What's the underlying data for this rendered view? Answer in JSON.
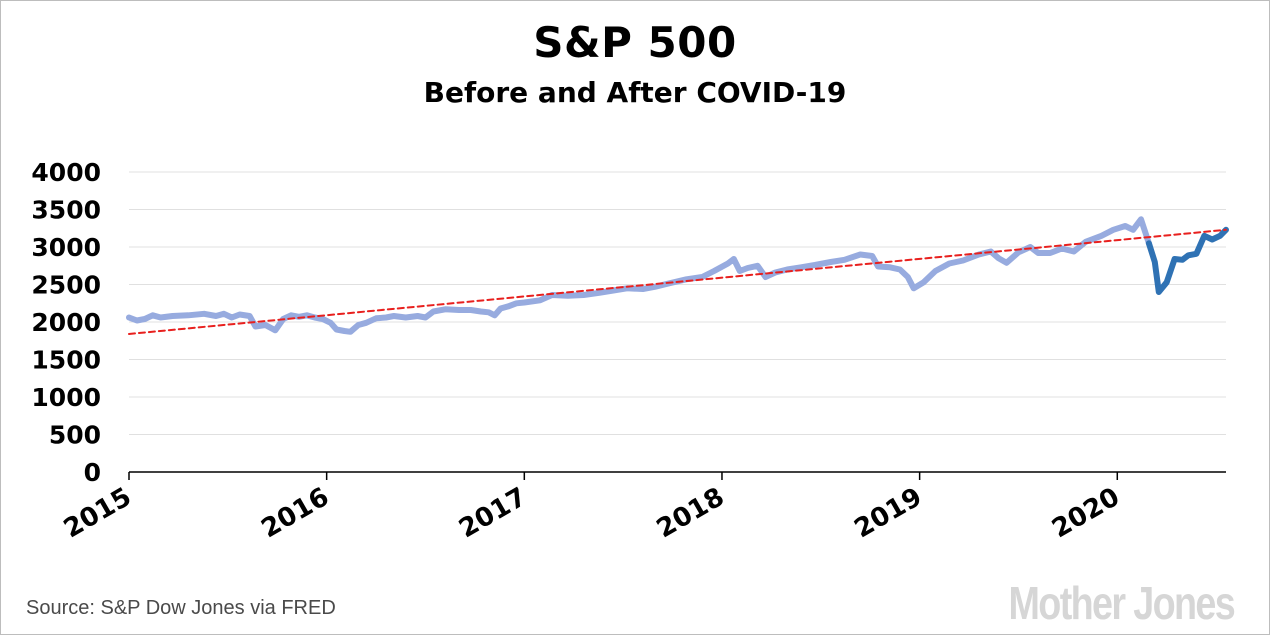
{
  "page": {
    "title": "S&P 500",
    "subtitle": "Before and After COVID-19",
    "source": "Source: S&P Dow Jones via FRED",
    "logo": "Mother Jones"
  },
  "colors": {
    "pre_covid": "#97abdf",
    "post_covid": "#2f72b4",
    "trend": "#e8201e",
    "grid": "#e0e0e0"
  },
  "chart_data": {
    "type": "line",
    "ylim": [
      0,
      4000
    ],
    "xlim": [
      2015,
      2020.55
    ],
    "yticks": [
      0,
      500,
      1000,
      1500,
      2000,
      2500,
      3000,
      3500,
      4000
    ],
    "xticks": [
      2015,
      2016,
      2017,
      2018,
      2019,
      2020
    ],
    "grid": true,
    "series": [
      {
        "style": "solid",
        "points": [
          [
            2015.0,
            2060
          ],
          [
            2015.04,
            2020
          ],
          [
            2015.08,
            2040
          ],
          [
            2015.12,
            2090
          ],
          [
            2015.16,
            2060
          ],
          [
            2015.22,
            2080
          ],
          [
            2015.3,
            2090
          ],
          [
            2015.38,
            2110
          ],
          [
            2015.44,
            2080
          ],
          [
            2015.48,
            2110
          ],
          [
            2015.52,
            2060
          ],
          [
            2015.56,
            2100
          ],
          [
            2015.61,
            2080
          ],
          [
            2015.64,
            1940
          ],
          [
            2015.69,
            1960
          ],
          [
            2015.74,
            1890
          ],
          [
            2015.78,
            2040
          ],
          [
            2015.82,
            2090
          ],
          [
            2015.86,
            2070
          ],
          [
            2015.9,
            2090
          ],
          [
            2015.94,
            2060
          ],
          [
            2015.98,
            2040
          ],
          [
            2016.02,
            1990
          ],
          [
            2016.05,
            1900
          ],
          [
            2016.09,
            1880
          ],
          [
            2016.12,
            1870
          ],
          [
            2016.16,
            1960
          ],
          [
            2016.2,
            1990
          ],
          [
            2016.25,
            2050
          ],
          [
            2016.3,
            2060
          ],
          [
            2016.34,
            2080
          ],
          [
            2016.4,
            2060
          ],
          [
            2016.46,
            2080
          ],
          [
            2016.5,
            2060
          ],
          [
            2016.54,
            2140
          ],
          [
            2016.6,
            2170
          ],
          [
            2016.67,
            2160
          ],
          [
            2016.73,
            2160
          ],
          [
            2016.78,
            2140
          ],
          [
            2016.82,
            2130
          ],
          [
            2016.85,
            2090
          ],
          [
            2016.88,
            2180
          ],
          [
            2016.92,
            2210
          ],
          [
            2016.96,
            2250
          ],
          [
            2017.0,
            2260
          ],
          [
            2017.08,
            2290
          ],
          [
            2017.14,
            2360
          ],
          [
            2017.22,
            2350
          ],
          [
            2017.3,
            2360
          ],
          [
            2017.38,
            2390
          ],
          [
            2017.45,
            2420
          ],
          [
            2017.52,
            2450
          ],
          [
            2017.6,
            2440
          ],
          [
            2017.66,
            2470
          ],
          [
            2017.74,
            2520
          ],
          [
            2017.82,
            2570
          ],
          [
            2017.9,
            2600
          ],
          [
            2017.96,
            2680
          ],
          [
            2018.03,
            2780
          ],
          [
            2018.06,
            2840
          ],
          [
            2018.09,
            2680
          ],
          [
            2018.13,
            2720
          ],
          [
            2018.18,
            2750
          ],
          [
            2018.22,
            2600
          ],
          [
            2018.27,
            2660
          ],
          [
            2018.33,
            2700
          ],
          [
            2018.4,
            2730
          ],
          [
            2018.47,
            2760
          ],
          [
            2018.55,
            2800
          ],
          [
            2018.62,
            2830
          ],
          [
            2018.7,
            2900
          ],
          [
            2018.76,
            2880
          ],
          [
            2018.79,
            2740
          ],
          [
            2018.85,
            2730
          ],
          [
            2018.9,
            2700
          ],
          [
            2018.94,
            2600
          ],
          [
            2018.97,
            2450
          ],
          [
            2019.02,
            2530
          ],
          [
            2019.08,
            2680
          ],
          [
            2019.15,
            2780
          ],
          [
            2019.22,
            2820
          ],
          [
            2019.3,
            2900
          ],
          [
            2019.36,
            2940
          ],
          [
            2019.4,
            2850
          ],
          [
            2019.44,
            2790
          ],
          [
            2019.5,
            2930
          ],
          [
            2019.56,
            3000
          ],
          [
            2019.6,
            2920
          ],
          [
            2019.66,
            2920
          ],
          [
            2019.72,
            2980
          ],
          [
            2019.78,
            2940
          ],
          [
            2019.84,
            3070
          ],
          [
            2019.92,
            3150
          ],
          [
            2019.98,
            3230
          ],
          [
            2020.04,
            3280
          ],
          [
            2020.08,
            3230
          ],
          [
            2020.12,
            3370
          ],
          [
            2020.16,
            3050
          ]
        ]
      },
      {
        "style": "solid",
        "points": [
          [
            2020.16,
            3050
          ],
          [
            2020.19,
            2800
          ],
          [
            2020.21,
            2400
          ],
          [
            2020.25,
            2530
          ],
          [
            2020.29,
            2840
          ],
          [
            2020.33,
            2830
          ],
          [
            2020.36,
            2890
          ],
          [
            2020.4,
            2910
          ],
          [
            2020.44,
            3150
          ],
          [
            2020.48,
            3100
          ],
          [
            2020.52,
            3150
          ],
          [
            2020.55,
            3230
          ]
        ]
      },
      {
        "style": "dashed",
        "points": [
          [
            2015.0,
            1840
          ],
          [
            2020.55,
            3230
          ]
        ]
      }
    ]
  }
}
